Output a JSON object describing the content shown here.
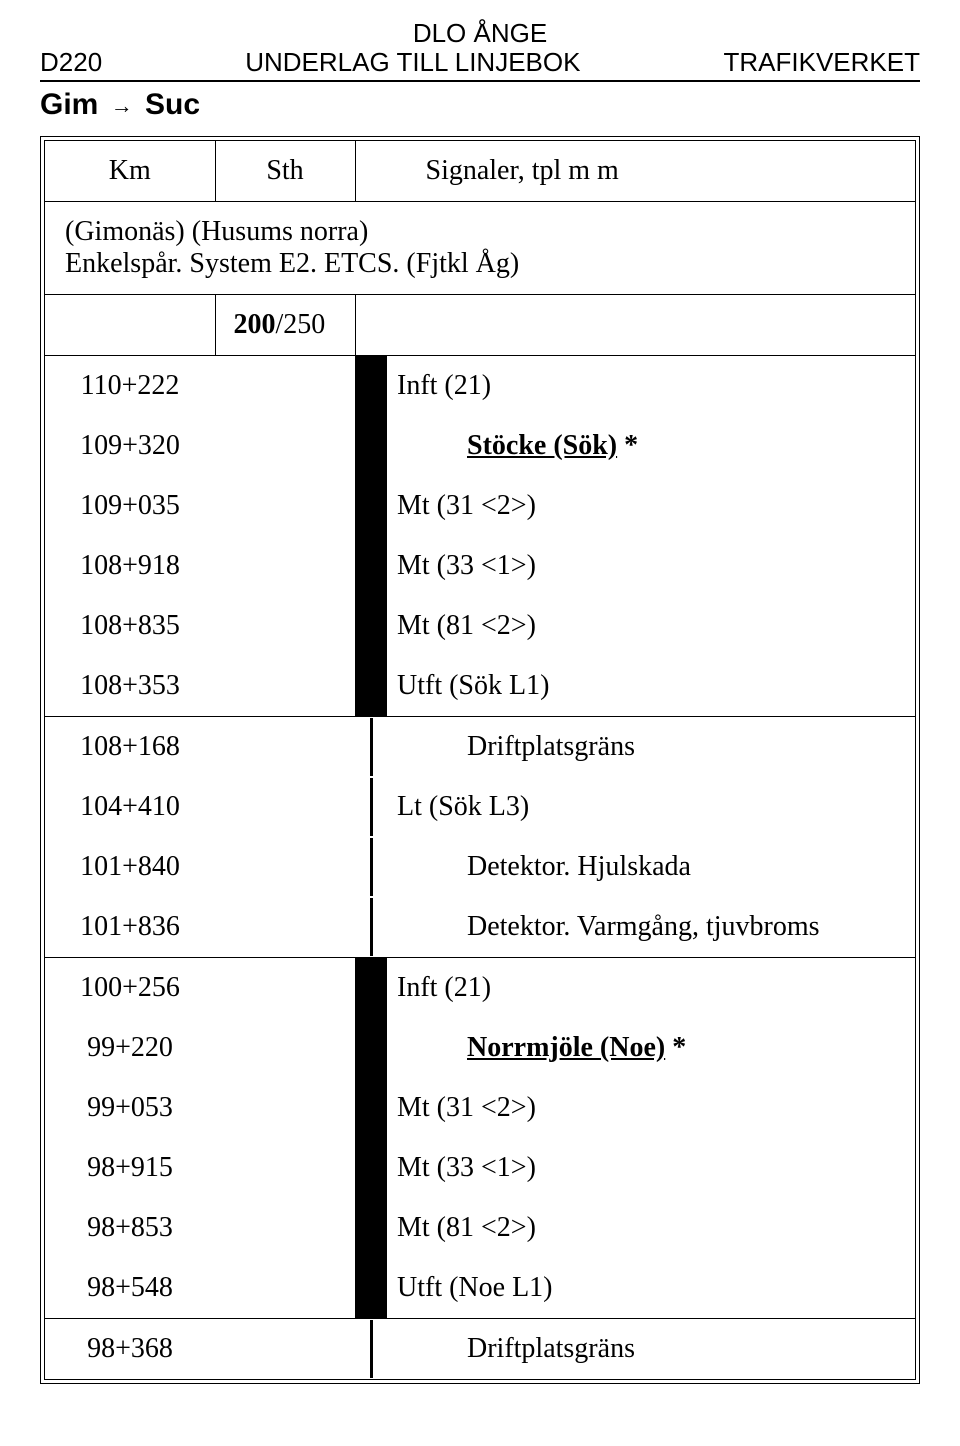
{
  "header": {
    "top": "DLO ÅNGE",
    "left": "D220",
    "mid": "UNDERLAG TILL LINJEBOK",
    "right": "TRAFIKVERKET"
  },
  "route": {
    "from": "Gim",
    "arrow": "→",
    "to": "Suc"
  },
  "columns": {
    "km": "Km",
    "sth": "Sth",
    "sig": "Signaler, tpl m m"
  },
  "intro": {
    "line1": "(Gimonäs) (Husums norra)",
    "line2": "Enkelspår. System E2. ETCS. (Fjtkl Åg)"
  },
  "speed": "200/250",
  "rows": [
    {
      "km": "110+222",
      "sig": "Inft (21)",
      "bar": "thick",
      "indent": false
    },
    {
      "km": "109+320",
      "sig": "Stöcke (Sök) *",
      "bar": "thick",
      "indent": true,
      "station": true
    },
    {
      "km": "109+035",
      "sig": "Mt (31 <2>)",
      "bar": "thick",
      "indent": false
    },
    {
      "km": "108+918",
      "sig": "Mt (33 <1>)",
      "bar": "thick",
      "indent": false
    },
    {
      "km": "108+835",
      "sig": "Mt (81 <2>)",
      "bar": "thick",
      "indent": false
    },
    {
      "km": "108+353",
      "sig": "Utft (Sök L1)",
      "bar": "thick",
      "indent": false,
      "groupEnd": true
    },
    {
      "km": "108+168",
      "sig": "Driftplatsgräns",
      "bar": "thin",
      "indent": true
    },
    {
      "km": "104+410",
      "sig": "Lt (Sök L3)",
      "bar": "thin",
      "indent": false
    },
    {
      "km": "101+840",
      "sig": "Detektor. Hjulskada",
      "bar": "thin",
      "indent": true
    },
    {
      "km": "101+836",
      "sig": "Detektor. Varmgång, tjuvbroms",
      "bar": "thin",
      "indent": true,
      "groupEnd": true
    },
    {
      "km": "100+256",
      "sig": "Inft (21)",
      "bar": "thick",
      "indent": false
    },
    {
      "km": "99+220",
      "sig": "Norrmjöle (Noe) *",
      "bar": "thick",
      "indent": true,
      "station": true
    },
    {
      "km": "99+053",
      "sig": "Mt (31 <2>)",
      "bar": "thick",
      "indent": false
    },
    {
      "km": "98+915",
      "sig": "Mt (33 <1>)",
      "bar": "thick",
      "indent": false
    },
    {
      "km": "98+853",
      "sig": "Mt (81 <2>)",
      "bar": "thick",
      "indent": false
    },
    {
      "km": "98+548",
      "sig": "Utft (Noe L1)",
      "bar": "thick",
      "indent": false,
      "groupEnd": true
    },
    {
      "km": "98+368",
      "sig": "Driftplatsgräns",
      "bar": "thin",
      "indent": true
    }
  ]
}
